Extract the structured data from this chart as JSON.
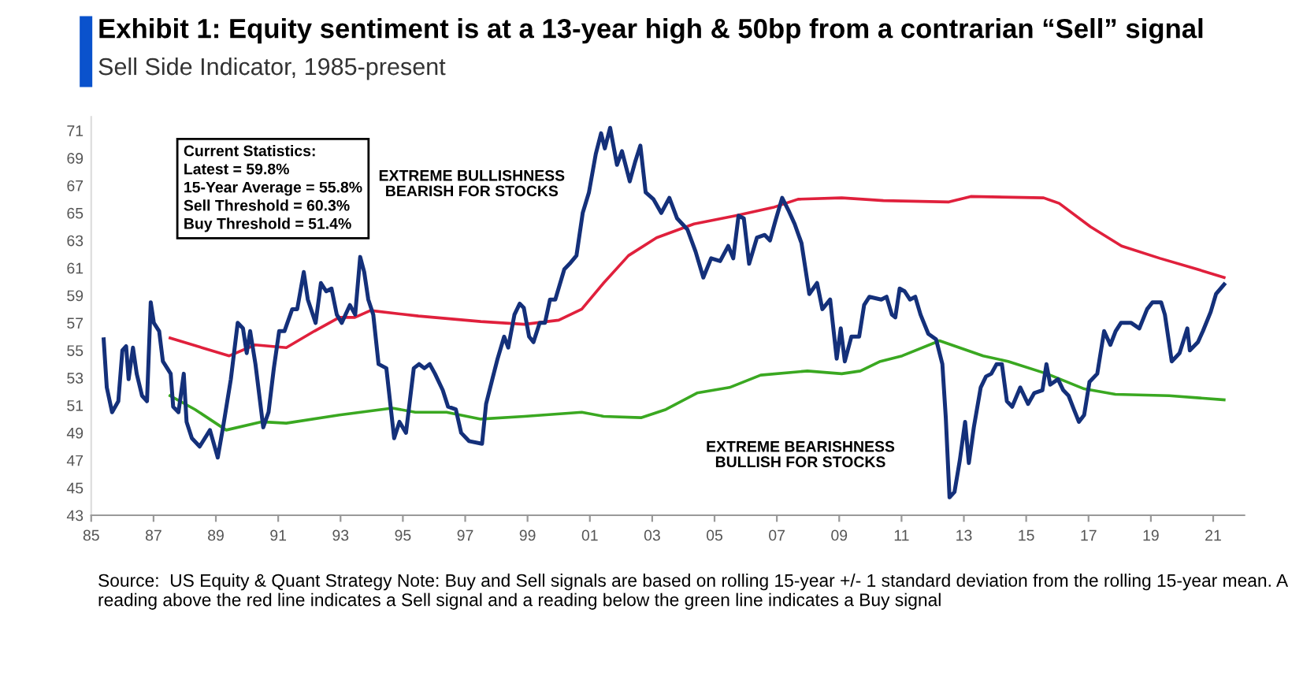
{
  "chart_data": {
    "type": "line",
    "title": "Exhibit 1: Equity sentiment is at a 13-year high & 50bp from a contrarian “Sell” signal",
    "subtitle": "Sell Side Indicator, 1985-present",
    "annotations": [
      "Current Statistics:\nLatest = 59.8%\n15-Year Average = 55.8%\nSell Threshold = 60.3%\nBuy Threshold = 51.4%",
      "EXTREME BULLISHNESS\nBEARISH FOR STOCKS",
      "EXTREME BEARISHNESS\nBULLISH FOR STOCKS",
      "Source:  US Equity & Quant Strategy Note: Buy and Sell signals are based on rolling 15-year +/- 1 standard deviation from the rolling 15-year mean. A reading above the red line indicates a Sell signal and a reading below the green line indicates a Buy signal"
    ],
    "xlim": [
      1985,
      2022
    ],
    "ylim": [
      43,
      72
    ],
    "xticks": [
      {
        "value": 1985,
        "label": "85"
      },
      {
        "value": 1987,
        "label": "87"
      },
      {
        "value": 1989,
        "label": "89"
      },
      {
        "value": 1991,
        "label": "91"
      },
      {
        "value": 1993,
        "label": "93"
      },
      {
        "value": 1995,
        "label": "95"
      },
      {
        "value": 1997,
        "label": "97"
      },
      {
        "value": 1999,
        "label": "99"
      },
      {
        "value": 2001,
        "label": "01"
      },
      {
        "value": 2003,
        "label": "03"
      },
      {
        "value": 2005,
        "label": "05"
      },
      {
        "value": 2007,
        "label": "07"
      },
      {
        "value": 2009,
        "label": "09"
      },
      {
        "value": 2011,
        "label": "11"
      },
      {
        "value": 2013,
        "label": "13"
      },
      {
        "value": 2015,
        "label": "15"
      },
      {
        "value": 2017,
        "label": "17"
      },
      {
        "value": 2019,
        "label": "19"
      },
      {
        "value": 2021,
        "label": "21"
      }
    ],
    "yticks": [
      43,
      45,
      47,
      49,
      51,
      53,
      55,
      57,
      59,
      61,
      63,
      65,
      67,
      69,
      71
    ],
    "grid": false,
    "legend": false,
    "marker": "none",
    "line_style": "solid",
    "series": [
      {
        "color": "#e0203c",
        "x": [
          1987.53,
          1989.43,
          1990.26,
          1991.26,
          1992.16,
          1992.96,
          1993.46,
          1993.96,
          1995.5,
          1997.5,
          1998.9,
          2000.0,
          2000.74,
          2001.44,
          2002.24,
          2003.14,
          2004.34,
          2005.68,
          2006.88,
          2007.68,
          2009.08,
          2010.42,
          2012.52,
          2013.22,
          2015.56,
          2016.06,
          2017.06,
          2018.06,
          2019.29,
          2020.49,
          2021.35
        ],
        "values": [
          55.9,
          54.6,
          55.4,
          55.2,
          56.4,
          57.4,
          57.4,
          57.9,
          57.5,
          57.1,
          56.9,
          57.2,
          58.0,
          59.9,
          61.9,
          63.2,
          64.2,
          64.8,
          65.4,
          66.0,
          66.1,
          65.9,
          65.8,
          66.2,
          66.1,
          65.7,
          64.0,
          62.6,
          61.7,
          60.9,
          60.3
        ]
      },
      {
        "color": "#3aa821",
        "x": [
          1987.53,
          1988.33,
          1989.33,
          1990.46,
          1991.26,
          1992.96,
          1994.66,
          1995.4,
          1996.4,
          1997.5,
          1998.9,
          2000.74,
          2001.44,
          2002.64,
          2003.44,
          2004.44,
          2005.48,
          2006.48,
          2007.98,
          2009.08,
          2009.68,
          2010.32,
          2011.02,
          2012.22,
          2013.62,
          2014.42,
          2015.66,
          2016.86,
          2017.86,
          2019.59,
          2021.35
        ],
        "values": [
          51.7,
          50.7,
          49.2,
          49.8,
          49.7,
          50.3,
          50.8,
          50.5,
          50.5,
          50.0,
          50.2,
          50.5,
          50.2,
          50.1,
          50.7,
          51.9,
          52.3,
          53.2,
          53.5,
          53.3,
          53.5,
          54.2,
          54.6,
          55.7,
          54.6,
          54.2,
          53.3,
          52.2,
          51.8,
          51.7,
          51.4
        ]
      },
      {
        "color": "#14307a",
        "x": [
          1985.4,
          1985.5,
          1985.67,
          1985.87,
          1986.0,
          1986.12,
          1986.2,
          1986.34,
          1986.46,
          1986.63,
          1986.79,
          1986.91,
          1987.01,
          1987.18,
          1987.3,
          1987.55,
          1987.63,
          1987.8,
          1987.97,
          1988.06,
          1988.23,
          1988.48,
          1988.81,
          1989.06,
          1989.23,
          1989.48,
          1989.7,
          1989.87,
          1989.99,
          1990.1,
          1990.27,
          1990.52,
          1990.69,
          1990.86,
          1991.03,
          1991.2,
          1991.45,
          1991.61,
          1991.82,
          1991.95,
          1992.2,
          1992.37,
          1992.54,
          1992.71,
          1992.88,
          1993.04,
          1993.3,
          1993.47,
          1993.63,
          1993.76,
          1993.89,
          1994.05,
          1994.22,
          1994.47,
          1994.72,
          1994.89,
          1995.1,
          1995.35,
          1995.52,
          1995.69,
          1995.86,
          1996.03,
          1996.28,
          1996.45,
          1996.7,
          1996.87,
          1997.12,
          1997.54,
          1997.67,
          1997.87,
          1998.04,
          1998.25,
          1998.38,
          1998.58,
          1998.75,
          1998.88,
          1999.05,
          1999.19,
          1999.39,
          1999.56,
          1999.72,
          1999.89,
          2000.18,
          2000.35,
          2000.57,
          2000.77,
          2000.97,
          2001.19,
          2001.36,
          2001.48,
          2001.65,
          2001.87,
          2002.03,
          2002.28,
          2002.45,
          2002.62,
          2002.79,
          2003.04,
          2003.29,
          2003.55,
          2003.8,
          2004.13,
          2004.39,
          2004.64,
          2004.89,
          2005.18,
          2005.44,
          2005.6,
          2005.77,
          2005.94,
          2006.11,
          2006.36,
          2006.61,
          2006.78,
          2006.95,
          2007.17,
          2007.37,
          2007.57,
          2007.79,
          2008.04,
          2008.29,
          2008.46,
          2008.71,
          2008.92,
          2009.05,
          2009.18,
          2009.39,
          2009.64,
          2009.8,
          2009.97,
          2010.35,
          2010.52,
          2010.69,
          2010.8,
          2010.94,
          2011.1,
          2011.27,
          2011.44,
          2011.61,
          2011.86,
          2012.11,
          2012.31,
          2012.42,
          2012.54,
          2012.7,
          2012.87,
          2013.04,
          2013.16,
          2013.32,
          2013.54,
          2013.71,
          2013.88,
          2014.05,
          2014.22,
          2014.38,
          2014.55,
          2014.81,
          2015.06,
          2015.26,
          2015.52,
          2015.65,
          2015.77,
          2016.02,
          2016.19,
          2016.36,
          2016.53,
          2016.69,
          2016.86,
          2017.03,
          2017.28,
          2017.5,
          2017.7,
          2017.87,
          2018.04,
          2018.37,
          2018.63,
          2018.88,
          2019.05,
          2019.33,
          2019.45,
          2019.67,
          2019.92,
          2020.17,
          2020.25,
          2020.51,
          2020.67,
          2020.92,
          2021.09,
          2021.35
        ],
        "values": [
          55.8,
          52.3,
          50.5,
          51.3,
          55.0,
          55.3,
          52.9,
          55.2,
          53.3,
          51.7,
          51.3,
          58.5,
          57.0,
          56.4,
          54.2,
          53.3,
          50.9,
          50.5,
          53.3,
          49.8,
          48.6,
          48.0,
          49.2,
          47.2,
          49.4,
          52.9,
          57.0,
          56.6,
          54.8,
          56.4,
          54.0,
          49.4,
          50.5,
          53.7,
          56.4,
          56.4,
          58.0,
          58.0,
          60.7,
          58.7,
          57.0,
          59.9,
          59.3,
          59.5,
          57.6,
          57.0,
          58.3,
          57.6,
          61.8,
          60.7,
          58.7,
          57.6,
          54.0,
          53.7,
          48.6,
          49.8,
          49.0,
          53.7,
          54.0,
          53.7,
          54.0,
          53.3,
          52.1,
          50.9,
          50.7,
          49.0,
          48.4,
          48.2,
          51.1,
          52.9,
          54.4,
          56.0,
          55.2,
          57.6,
          58.4,
          58.1,
          56.0,
          55.6,
          57.0,
          57.0,
          58.7,
          58.7,
          60.9,
          61.3,
          61.9,
          65.0,
          66.5,
          69.3,
          70.8,
          69.7,
          71.2,
          68.5,
          69.5,
          67.3,
          68.7,
          69.9,
          66.5,
          66.0,
          65.0,
          66.1,
          64.6,
          63.8,
          62.2,
          60.3,
          61.7,
          61.5,
          62.6,
          61.7,
          64.8,
          64.6,
          61.3,
          63.2,
          63.4,
          63.0,
          64.4,
          66.1,
          65.2,
          64.2,
          62.8,
          59.1,
          59.9,
          58.0,
          58.7,
          54.4,
          56.6,
          54.2,
          56.0,
          56.0,
          58.3,
          58.9,
          58.7,
          58.9,
          57.6,
          57.4,
          59.5,
          59.3,
          58.7,
          58.9,
          57.6,
          56.2,
          55.8,
          54.0,
          50.1,
          44.3,
          44.7,
          47.0,
          49.8,
          46.8,
          49.4,
          52.3,
          53.1,
          53.3,
          54.0,
          54.0,
          51.3,
          50.9,
          52.3,
          51.1,
          51.9,
          52.1,
          54.0,
          52.5,
          52.9,
          52.1,
          51.7,
          50.7,
          49.8,
          50.3,
          52.7,
          53.3,
          56.4,
          55.4,
          56.4,
          57.0,
          57.0,
          56.6,
          58.0,
          58.5,
          58.5,
          57.6,
          54.2,
          54.8,
          56.6,
          55.0,
          55.6,
          56.4,
          57.8,
          59.1,
          59.8
        ]
      }
    ]
  }
}
